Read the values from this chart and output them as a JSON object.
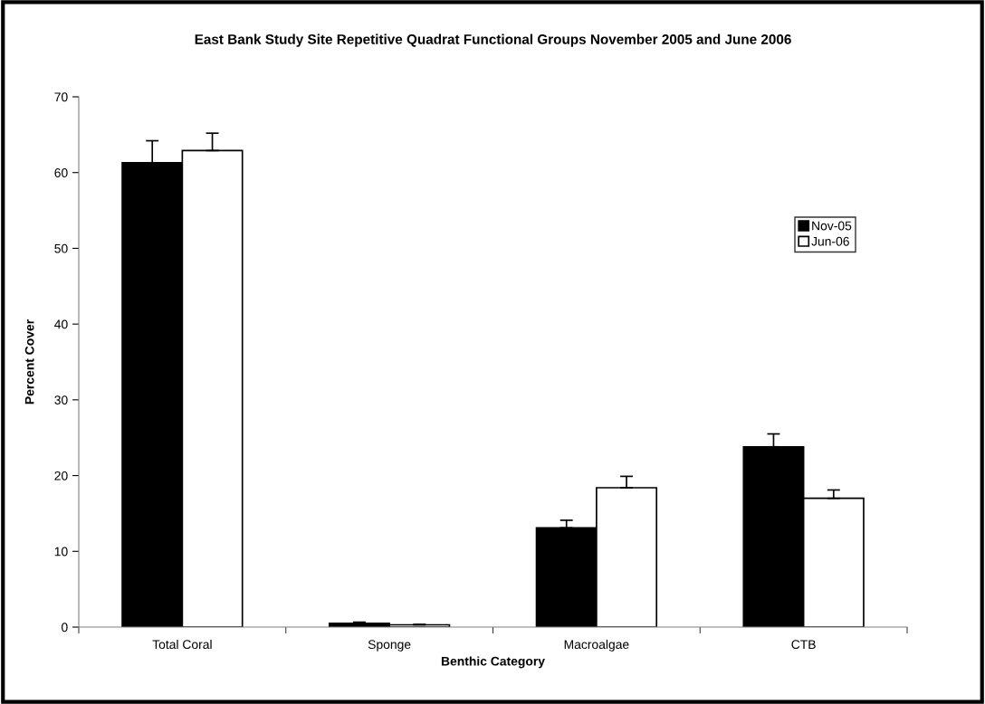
{
  "chart_data": {
    "type": "bar",
    "title": "East Bank Study Site Repetitive Quadrat Functional Groups November 2005 and June 2006",
    "xlabel": "Benthic Category",
    "ylabel": "Percent Cover",
    "categories": [
      "Total Coral",
      "Sponge",
      "Macroalgae",
      "CTB"
    ],
    "series": [
      {
        "name": "Nov-05",
        "color": "#000000",
        "values": [
          61.3,
          0.5,
          13.1,
          23.8
        ],
        "errors": [
          [
            61.3,
            64.2
          ],
          [
            0.5,
            0.65
          ],
          [
            13.1,
            14.1
          ],
          [
            23.8,
            25.5
          ]
        ]
      },
      {
        "name": "Jun-06",
        "color": "#ffffff",
        "values": [
          62.9,
          0.3,
          18.4,
          17.0
        ],
        "errors": [
          [
            62.9,
            65.2
          ],
          [
            0.3,
            0.35
          ],
          [
            18.4,
            19.9
          ],
          [
            17.0,
            18.1
          ]
        ]
      }
    ],
    "ylim": [
      0,
      70
    ],
    "yticks": [
      0,
      10,
      20,
      30,
      40,
      50,
      60,
      70
    ],
    "grid": false,
    "legend": "right"
  }
}
